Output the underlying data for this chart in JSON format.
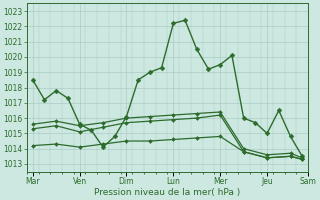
{
  "background_color": "#cce8e0",
  "grid_color": "#aaccc4",
  "line_color": "#2d6b2d",
  "title": "Pression niveau de la mer( hPa )",
  "ylim": [
    1012.5,
    1023.5
  ],
  "yticks": [
    1013,
    1014,
    1015,
    1016,
    1017,
    1018,
    1019,
    1020,
    1021,
    1022,
    1023
  ],
  "xlim": [
    0,
    24
  ],
  "major_tick_positions": [
    0.5,
    4.5,
    8.5,
    12.5,
    16.5,
    20.5,
    24
  ],
  "major_tick_labels": [
    "Mar",
    "Ven",
    "Dim",
    "Lun",
    "Mer",
    "Jeu",
    "Sam"
  ],
  "line1_x": [
    0.5,
    1.5,
    2.5,
    3.5,
    4.5,
    5.5,
    6.5,
    7.5,
    8.5,
    9.5,
    10.5,
    11.5,
    12.5,
    13.5,
    14.5,
    15.5,
    16.5,
    17.5,
    18.5,
    19.5,
    20.5,
    21.5,
    22.5,
    23.5
  ],
  "line1_y": [
    1018.5,
    1017.2,
    1017.8,
    1017.3,
    1015.6,
    1015.2,
    1014.1,
    1014.8,
    1016.1,
    1018.5,
    1019.0,
    1019.3,
    1022.2,
    1022.4,
    1020.5,
    1019.2,
    1019.5,
    1020.1,
    1016.0,
    1015.7,
    1015.0,
    1016.5,
    1014.8,
    1013.5
  ],
  "line2_x": [
    0.5,
    2.5,
    4.5,
    6.5,
    8.5,
    10.5,
    12.5,
    14.5,
    16.5,
    18.5,
    20.5,
    22.5,
    23.5
  ],
  "line2_y": [
    1015.6,
    1015.8,
    1015.5,
    1015.7,
    1016.0,
    1016.1,
    1016.2,
    1016.3,
    1016.4,
    1014.0,
    1013.6,
    1013.7,
    1013.4
  ],
  "line3_x": [
    0.5,
    2.5,
    4.5,
    6.5,
    8.5,
    10.5,
    12.5,
    14.5,
    16.5,
    18.5,
    20.5,
    22.5,
    23.5
  ],
  "line3_y": [
    1015.3,
    1015.5,
    1015.1,
    1015.4,
    1015.7,
    1015.8,
    1015.9,
    1016.0,
    1016.2,
    1013.8,
    1013.4,
    1013.5,
    1013.3
  ],
  "line4_x": [
    0.5,
    2.5,
    4.5,
    6.5,
    8.5,
    10.5,
    12.5,
    14.5,
    16.5,
    18.5,
    20.5,
    22.5,
    23.5
  ],
  "line4_y": [
    1014.2,
    1014.3,
    1014.1,
    1014.3,
    1014.5,
    1014.5,
    1014.6,
    1014.7,
    1014.8,
    1013.8,
    1013.4,
    1013.5,
    1013.3
  ]
}
